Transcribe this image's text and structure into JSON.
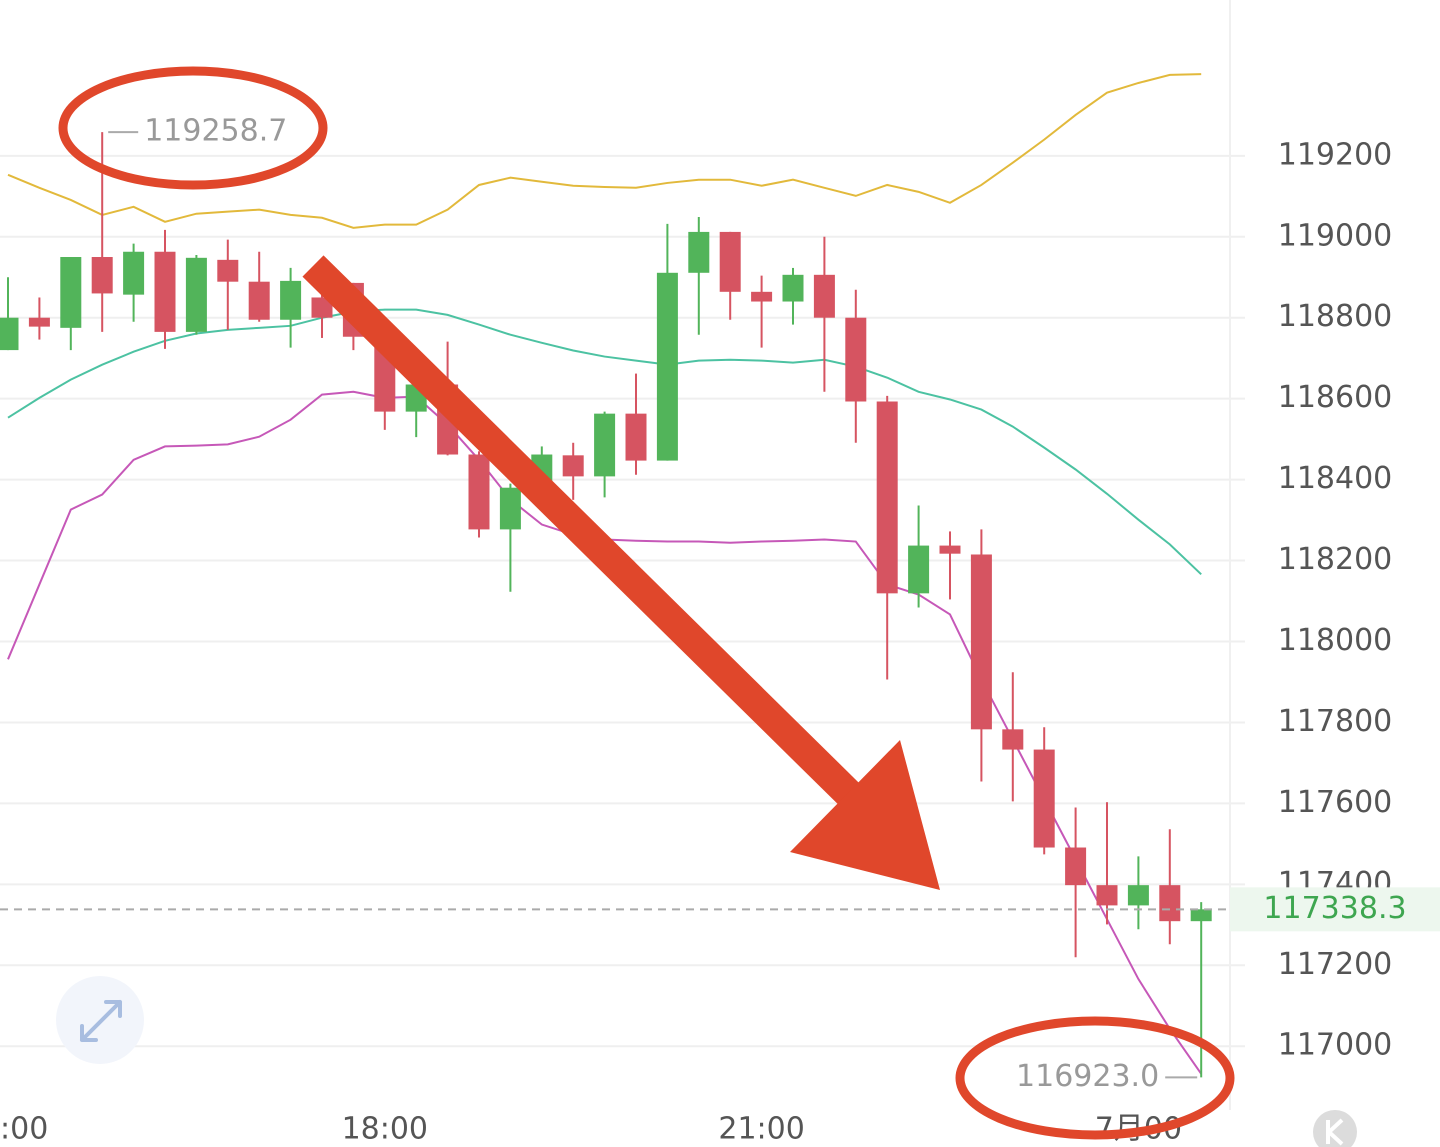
{
  "chart_data": {
    "type": "candlestick",
    "categories": [
      ":00",
      null,
      null,
      null,
      null,
      null,
      null,
      null,
      null,
      null,
      null,
      null,
      "18:00",
      null,
      null,
      null,
      null,
      null,
      null,
      null,
      null,
      null,
      null,
      null,
      "21:00",
      null,
      null,
      null,
      null,
      null,
      null,
      null,
      null,
      null,
      null,
      null,
      "7月00",
      null,
      null
    ],
    "open": [
      118720,
      118800,
      118775,
      118950,
      118857,
      118963,
      118765,
      118943,
      118889,
      118795,
      118850,
      118886,
      118753,
      118568,
      118635,
      118462,
      118277,
      118378,
      118460,
      118408,
      118563,
      118447,
      118911,
      119012,
      118864,
      118840,
      118906,
      118800,
      118593,
      118119,
      118237,
      118215,
      117783,
      117733,
      117491,
      117398,
      117348,
      117398,
      117309
    ],
    "high": [
      118900,
      118850,
      118950,
      119258.7,
      118983,
      119017,
      118955,
      118993,
      118963,
      118923,
      118870,
      118886,
      118760,
      118650,
      118741,
      118470,
      118390,
      118482,
      118491,
      118568,
      118662,
      119032,
      119049,
      119012,
      118904,
      118923,
      119000,
      118869,
      118607,
      118336,
      118272,
      118277,
      117924,
      117788,
      117590,
      117603,
      117469,
      117536,
      117356
    ],
    "low": [
      118720,
      118746,
      118720,
      118765,
      118790,
      118723,
      118758,
      118770,
      118790,
      118726,
      118750,
      118720,
      118523,
      118505,
      118460,
      118257,
      118123,
      118350,
      118350,
      118356,
      118412,
      118447,
      118758,
      118795,
      118726,
      118783,
      118617,
      118491,
      117906,
      118084,
      118104,
      117654,
      117605,
      117474,
      117220,
      117301,
      117289,
      117252,
      116923
    ],
    "close": [
      118800,
      118778,
      118950,
      118860,
      118963,
      118765,
      118948,
      118889,
      118795,
      118891,
      118800,
      118753,
      118568,
      118635,
      118462,
      118277,
      118380,
      118462,
      118408,
      118563,
      118447,
      118911,
      119012,
      118864,
      118840,
      118906,
      118800,
      118593,
      118119,
      118237,
      118217,
      117783,
      117733,
      117491,
      117398,
      117348,
      117398,
      117309,
      117338.3
    ],
    "up_color": "#52b45a",
    "down_color": "#d65461",
    "bands": [
      {
        "color": "#e2b93b",
        "values": [
          119153,
          119121,
          119091,
          119054,
          119074,
          119037,
          119057,
          119062,
          119067,
          119054,
          119047,
          119022,
          119030,
          119030,
          119067,
          119128,
          119146,
          119136,
          119126,
          119123,
          119121,
          119133,
          119141,
          119141,
          119126,
          119141,
          119121,
          119101,
          119128,
          119111,
          119084,
          119128,
          119183,
          119240,
          119301,
          119356,
          119380,
          119400,
          119402
        ]
      },
      {
        "color": "#4cc2a2",
        "values": [
          118553,
          118602,
          118647,
          118684,
          118716,
          118743,
          118761,
          118770,
          118775,
          118780,
          118800,
          118815,
          118820,
          118820,
          118807,
          118783,
          118758,
          118738,
          118719,
          118704,
          118694,
          118684,
          118694,
          118696,
          118694,
          118689,
          118696,
          118679,
          118652,
          118617,
          118598,
          118573,
          118531,
          118479,
          118425,
          118365,
          118301,
          118240,
          118166
        ]
      },
      {
        "color": "#c658b8",
        "values": [
          117956,
          118141,
          118326,
          118363,
          118449,
          118482,
          118484,
          118487,
          118506,
          118548,
          118610,
          118617,
          118602,
          118605,
          118536,
          118449,
          118351,
          118289,
          118264,
          118252,
          118249,
          118247,
          118247,
          118244,
          118247,
          118249,
          118252,
          118247,
          118141,
          118116,
          118067,
          117906,
          117758,
          117610,
          117462,
          117314,
          117166,
          117043,
          116932
        ]
      }
    ],
    "annotations": [
      {
        "value": 119258.7,
        "label": "119258.7",
        "at": "high"
      },
      {
        "value": 116923,
        "label": "116923.0",
        "at": "low"
      }
    ],
    "last_price": 117338.3,
    "last_price_color": "#3ea650",
    "ylim": [
      116840,
      119585
    ],
    "yticks": [
      117000,
      117200,
      117400,
      117600,
      117800,
      118000,
      118200,
      118400,
      118600,
      118800,
      119000,
      119200
    ],
    "grid": true
  }
}
